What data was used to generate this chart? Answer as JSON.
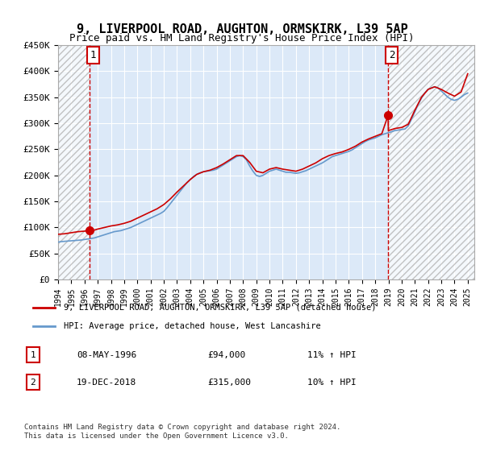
{
  "title": "9, LIVERPOOL ROAD, AUGHTON, ORMSKIRK, L39 5AP",
  "subtitle": "Price paid vs. HM Land Registry's House Price Index (HPI)",
  "xlabel": "",
  "ylabel": "",
  "ylim": [
    0,
    450000
  ],
  "xlim_start": 1994.0,
  "xlim_end": 2025.5,
  "yticks": [
    0,
    50000,
    100000,
    150000,
    200000,
    250000,
    300000,
    350000,
    400000,
    450000
  ],
  "ytick_labels": [
    "£0",
    "£50K",
    "£100K",
    "£150K",
    "£200K",
    "£250K",
    "£300K",
    "£350K",
    "£400K",
    "£450K"
  ],
  "background_color": "#ffffff",
  "plot_bg_color": "#dce9f8",
  "hatch_color": "#c0c0c0",
  "grid_color": "#ffffff",
  "red_line_color": "#cc0000",
  "blue_line_color": "#6699cc",
  "vline_color": "#cc0000",
  "marker1_x": 1996.36,
  "marker1_y": 94000,
  "marker2_x": 2018.97,
  "marker2_y": 315000,
  "annotation1_label": "1",
  "annotation2_label": "2",
  "legend_line1": "9, LIVERPOOL ROAD, AUGHTON, ORMSKIRK, L39 5AP (detached house)",
  "legend_line2": "HPI: Average price, detached house, West Lancashire",
  "table_row1": [
    "1",
    "08-MAY-1996",
    "£94,000",
    "11% ↑ HPI"
  ],
  "table_row2": [
    "2",
    "19-DEC-2018",
    "£315,000",
    "10% ↑ HPI"
  ],
  "footnote": "Contains HM Land Registry data © Crown copyright and database right 2024.\nThis data is licensed under the Open Government Licence v3.0.",
  "hpi_data": {
    "years": [
      1994.0,
      1994.25,
      1994.5,
      1994.75,
      1995.0,
      1995.25,
      1995.5,
      1995.75,
      1996.0,
      1996.25,
      1996.5,
      1996.75,
      1997.0,
      1997.25,
      1997.5,
      1997.75,
      1998.0,
      1998.25,
      1998.5,
      1998.75,
      1999.0,
      1999.25,
      1999.5,
      1999.75,
      2000.0,
      2000.25,
      2000.5,
      2000.75,
      2001.0,
      2001.25,
      2001.5,
      2001.75,
      2002.0,
      2002.25,
      2002.5,
      2002.75,
      2003.0,
      2003.25,
      2003.5,
      2003.75,
      2004.0,
      2004.25,
      2004.5,
      2004.75,
      2005.0,
      2005.25,
      2005.5,
      2005.75,
      2006.0,
      2006.25,
      2006.5,
      2006.75,
      2007.0,
      2007.25,
      2007.5,
      2007.75,
      2008.0,
      2008.25,
      2008.5,
      2008.75,
      2009.0,
      2009.25,
      2009.5,
      2009.75,
      2010.0,
      2010.25,
      2010.5,
      2010.75,
      2011.0,
      2011.25,
      2011.5,
      2011.75,
      2012.0,
      2012.25,
      2012.5,
      2012.75,
      2013.0,
      2013.25,
      2013.5,
      2013.75,
      2014.0,
      2014.25,
      2014.5,
      2014.75,
      2015.0,
      2015.25,
      2015.5,
      2015.75,
      2016.0,
      2016.25,
      2016.5,
      2016.75,
      2017.0,
      2017.25,
      2017.5,
      2017.75,
      2018.0,
      2018.25,
      2018.5,
      2018.75,
      2019.0,
      2019.25,
      2019.5,
      2019.75,
      2020.0,
      2020.25,
      2020.5,
      2020.75,
      2021.0,
      2021.25,
      2021.5,
      2021.75,
      2022.0,
      2022.25,
      2022.5,
      2022.75,
      2023.0,
      2023.25,
      2023.5,
      2023.75,
      2024.0,
      2024.25,
      2024.5,
      2024.75,
      2025.0
    ],
    "values": [
      72000,
      73000,
      73500,
      74000,
      74500,
      75000,
      75500,
      76000,
      77000,
      78000,
      79000,
      80000,
      82000,
      84000,
      86000,
      88000,
      90000,
      92000,
      93000,
      94000,
      96000,
      98000,
      100000,
      103000,
      106000,
      109000,
      112000,
      115000,
      118000,
      121000,
      124000,
      127000,
      131000,
      138000,
      146000,
      154000,
      162000,
      170000,
      178000,
      186000,
      192000,
      198000,
      202000,
      205000,
      207000,
      208000,
      209000,
      210000,
      212000,
      216000,
      220000,
      224000,
      228000,
      232000,
      236000,
      238000,
      236000,
      230000,
      218000,
      208000,
      200000,
      198000,
      200000,
      204000,
      208000,
      210000,
      212000,
      210000,
      208000,
      206000,
      206000,
      205000,
      204000,
      205000,
      207000,
      209000,
      212000,
      215000,
      218000,
      221000,
      224000,
      228000,
      232000,
      236000,
      238000,
      240000,
      242000,
      244000,
      246000,
      249000,
      253000,
      257000,
      261000,
      265000,
      268000,
      270000,
      272000,
      275000,
      278000,
      280000,
      282000,
      284000,
      286000,
      287000,
      288000,
      289000,
      295000,
      308000,
      322000,
      336000,
      348000,
      358000,
      365000,
      368000,
      370000,
      368000,
      362000,
      356000,
      350000,
      346000,
      344000,
      346000,
      350000,
      355000,
      358000
    ]
  },
  "price_data": {
    "years": [
      1994.0,
      1994.5,
      1995.0,
      1995.5,
      1996.0,
      1996.36,
      1996.75,
      1997.0,
      1997.5,
      1998.0,
      1998.5,
      1999.0,
      1999.5,
      2000.0,
      2000.5,
      2001.0,
      2001.5,
      2002.0,
      2002.5,
      2003.0,
      2003.5,
      2004.0,
      2004.5,
      2005.0,
      2005.5,
      2006.0,
      2006.5,
      2007.0,
      2007.5,
      2008.0,
      2008.5,
      2009.0,
      2009.5,
      2010.0,
      2010.5,
      2011.0,
      2011.5,
      2012.0,
      2012.5,
      2013.0,
      2013.5,
      2014.0,
      2014.5,
      2015.0,
      2015.5,
      2016.0,
      2016.5,
      2017.0,
      2017.5,
      2018.0,
      2018.5,
      2018.97,
      2019.0,
      2019.5,
      2020.0,
      2020.5,
      2021.0,
      2021.5,
      2022.0,
      2022.5,
      2023.0,
      2023.5,
      2024.0,
      2024.5,
      2025.0
    ],
    "values": [
      87000,
      88000,
      90000,
      92000,
      93000,
      94000,
      95000,
      97000,
      100000,
      103000,
      105000,
      108000,
      112000,
      118000,
      124000,
      130000,
      136000,
      144000,
      155000,
      168000,
      180000,
      192000,
      202000,
      207000,
      210000,
      215000,
      222000,
      230000,
      238000,
      238000,
      225000,
      208000,
      205000,
      212000,
      215000,
      212000,
      210000,
      208000,
      212000,
      218000,
      224000,
      232000,
      238000,
      242000,
      245000,
      250000,
      256000,
      264000,
      270000,
      275000,
      280000,
      315000,
      286000,
      290000,
      292000,
      298000,
      325000,
      350000,
      365000,
      370000,
      365000,
      358000,
      352000,
      360000,
      395000
    ]
  },
  "hatch_end_x": 1996.36,
  "hatch_start_x2": 2018.97
}
